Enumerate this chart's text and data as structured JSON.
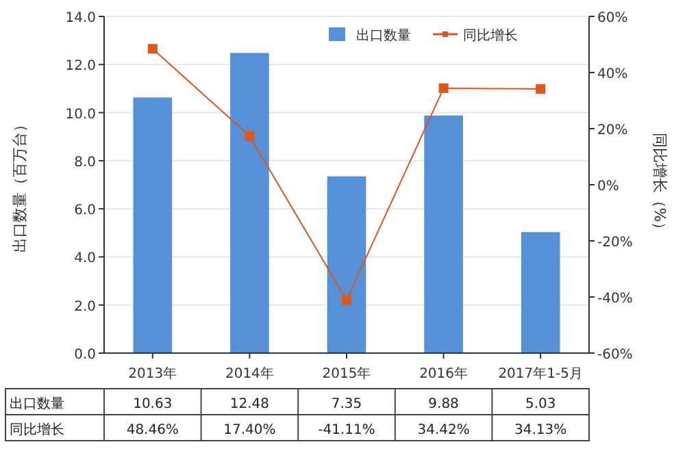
{
  "chart_data": {
    "type": "bar",
    "categories": [
      "2013年",
      "2014年",
      "2015年",
      "2016年",
      "2017年1-5月"
    ],
    "ylabel": "出口数量（百万台）",
    "y2label": "同比增长（%）",
    "series": [
      {
        "name": "出口数量",
        "color": "#5590d8",
        "values": [
          10.63,
          12.48,
          7.35,
          9.88,
          5.03
        ],
        "value_labels": [
          "10.63",
          "12.48",
          "7.35",
          "9.88",
          "5.03"
        ]
      },
      {
        "name": "同比增长",
        "type": "line",
        "axis": "y2",
        "color": "#e0561a",
        "values": [
          48.46,
          17.4,
          -41.11,
          34.42,
          34.13
        ],
        "value_labels": [
          "48.46%",
          "17.40%",
          "-41.11%",
          "34.42%",
          "34.13%"
        ]
      }
    ],
    "ylim": [
      0,
      14
    ],
    "yticks": [
      {
        "value": 0,
        "label": "0.0"
      },
      {
        "value": 2,
        "label": "2.0"
      },
      {
        "value": 4,
        "label": "4.0"
      },
      {
        "value": 6,
        "label": "6.0"
      },
      {
        "value": 8,
        "label": "8.0"
      },
      {
        "value": 10,
        "label": "10.0"
      },
      {
        "value": 12,
        "label": "12.0"
      },
      {
        "value": 14,
        "label": "14.0"
      }
    ],
    "y2lim": [
      -60,
      60
    ],
    "y2ticks": [
      {
        "value": -60,
        "label": "-60%"
      },
      {
        "value": -40,
        "label": "-40%"
      },
      {
        "value": -20,
        "label": "-20%"
      },
      {
        "value": 0,
        "label": "0%"
      },
      {
        "value": 20,
        "label": "20%"
      },
      {
        "value": 40,
        "label": "40%"
      },
      {
        "value": 60,
        "label": "60%"
      }
    ],
    "grid": "y",
    "legend": "top right",
    "marker": "square",
    "data_labels": true
  }
}
